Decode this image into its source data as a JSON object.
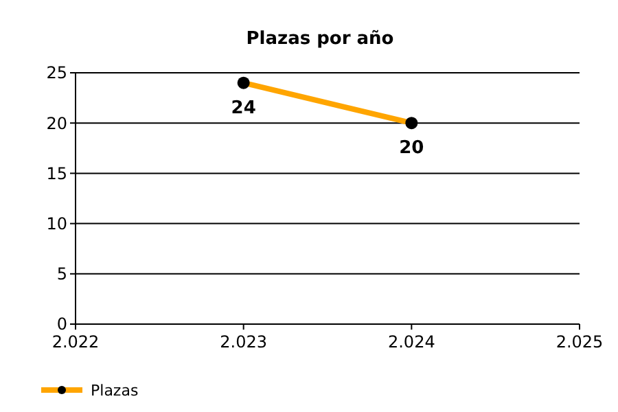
{
  "chart_data": {
    "type": "line",
    "title": "Plazas por año",
    "x": [
      2023,
      2024
    ],
    "series": [
      {
        "name": "Plazas",
        "color": "#ffa500",
        "values": [
          24,
          20
        ]
      }
    ],
    "xlim": [
      2022,
      2025
    ],
    "xticks": [
      {
        "value": 2022,
        "label": "2.022"
      },
      {
        "value": 2023,
        "label": "2.023"
      },
      {
        "value": 2024,
        "label": "2.024"
      },
      {
        "value": 2025,
        "label": "2.025"
      }
    ],
    "ylim": [
      0,
      25
    ],
    "yticks": [
      0,
      5,
      10,
      15,
      20,
      25
    ],
    "grid": "y",
    "legend": "bottom left",
    "marker": "circle",
    "line_style": "solid",
    "data_labels": true
  }
}
